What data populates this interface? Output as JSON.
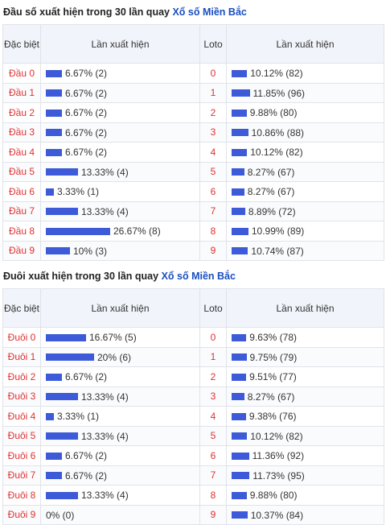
{
  "section1": {
    "title_prefix": "Đầu số xuất hiện trong 30 lần quay",
    "title_link": "Xổ số Miền Bắc",
    "header": {
      "dac_biet": "Đặc biệt",
      "lan_xuat_hien": "Lần xuất hiện",
      "loto": "Loto",
      "lan_xuat_hien2": "Lần xuất hiện"
    },
    "rows": [
      {
        "label": "Đầu 0",
        "left_text": "6.67% (2)",
        "left_pct": 6.67,
        "num": "0",
        "right_text": "10.12% (82)",
        "right_pct": 10.12
      },
      {
        "label": "Đầu 1",
        "left_text": "6.67% (2)",
        "left_pct": 6.67,
        "num": "1",
        "right_text": "11.85% (96)",
        "right_pct": 11.85
      },
      {
        "label": "Đầu 2",
        "left_text": "6.67% (2)",
        "left_pct": 6.67,
        "num": "2",
        "right_text": "9.88% (80)",
        "right_pct": 9.88
      },
      {
        "label": "Đầu 3",
        "left_text": "6.67% (2)",
        "left_pct": 6.67,
        "num": "3",
        "right_text": "10.86% (88)",
        "right_pct": 10.86
      },
      {
        "label": "Đầu 4",
        "left_text": "6.67% (2)",
        "left_pct": 6.67,
        "num": "4",
        "right_text": "10.12% (82)",
        "right_pct": 10.12
      },
      {
        "label": "Đầu 5",
        "left_text": "13.33% (4)",
        "left_pct": 13.33,
        "num": "5",
        "right_text": "8.27% (67)",
        "right_pct": 8.27
      },
      {
        "label": "Đầu 6",
        "left_text": "3.33% (1)",
        "left_pct": 3.33,
        "num": "6",
        "right_text": "8.27% (67)",
        "right_pct": 8.27
      },
      {
        "label": "Đầu 7",
        "left_text": "13.33% (4)",
        "left_pct": 13.33,
        "num": "7",
        "right_text": "8.89% (72)",
        "right_pct": 8.89
      },
      {
        "label": "Đầu 8",
        "left_text": "26.67% (8)",
        "left_pct": 26.67,
        "num": "8",
        "right_text": "10.99% (89)",
        "right_pct": 10.99
      },
      {
        "label": "Đầu 9",
        "left_text": "10% (3)",
        "left_pct": 10,
        "num": "9",
        "right_text": "10.74% (87)",
        "right_pct": 10.74
      }
    ]
  },
  "section2": {
    "title_prefix": "Đuôi xuất hiện trong 30 lần quay",
    "title_link": "Xổ số Miền Bắc",
    "header": {
      "dac_biet": "Đặc biệt",
      "lan_xuat_hien": "Lần xuất hiện",
      "loto": "Loto",
      "lan_xuat_hien2": "Lần xuất hiện"
    },
    "rows": [
      {
        "label": "Đuôi 0",
        "left_text": "16.67% (5)",
        "left_pct": 16.67,
        "num": "0",
        "right_text": "9.63% (78)",
        "right_pct": 9.63
      },
      {
        "label": "Đuôi 1",
        "left_text": "20% (6)",
        "left_pct": 20,
        "num": "1",
        "right_text": "9.75% (79)",
        "right_pct": 9.75
      },
      {
        "label": "Đuôi 2",
        "left_text": "6.67% (2)",
        "left_pct": 6.67,
        "num": "2",
        "right_text": "9.51% (77)",
        "right_pct": 9.51
      },
      {
        "label": "Đuôi 3",
        "left_text": "13.33% (4)",
        "left_pct": 13.33,
        "num": "3",
        "right_text": "8.27% (67)",
        "right_pct": 8.27
      },
      {
        "label": "Đuôi 4",
        "left_text": "3.33% (1)",
        "left_pct": 3.33,
        "num": "4",
        "right_text": "9.38% (76)",
        "right_pct": 9.38
      },
      {
        "label": "Đuôi 5",
        "left_text": "13.33% (4)",
        "left_pct": 13.33,
        "num": "5",
        "right_text": "10.12% (82)",
        "right_pct": 10.12
      },
      {
        "label": "Đuôi 6",
        "left_text": "6.67% (2)",
        "left_pct": 6.67,
        "num": "6",
        "right_text": "11.36% (92)",
        "right_pct": 11.36
      },
      {
        "label": "Đuôi 7",
        "left_text": "6.67% (2)",
        "left_pct": 6.67,
        "num": "7",
        "right_text": "11.73% (95)",
        "right_pct": 11.73
      },
      {
        "label": "Đuôi 8",
        "left_text": "13.33% (4)",
        "left_pct": 13.33,
        "num": "8",
        "right_text": "9.88% (80)",
        "right_pct": 9.88
      },
      {
        "label": "Đuôi 9",
        "left_text": "0% (0)",
        "left_pct": 0,
        "num": "9",
        "right_text": "10.37% (84)",
        "right_pct": 10.37
      }
    ]
  },
  "colors": {
    "bar": "#3d5ad8",
    "label_red": "#e03131",
    "link_blue": "#1a4fc1"
  }
}
